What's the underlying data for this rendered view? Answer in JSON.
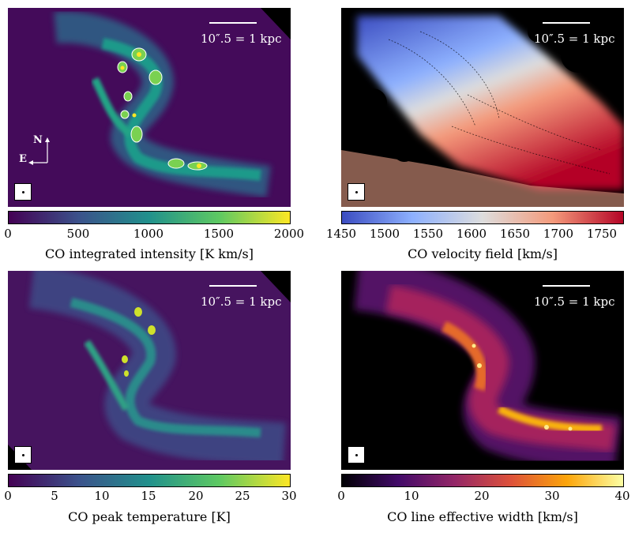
{
  "panels": [
    {
      "id": "intensity",
      "scale_label": "10″.5 = 1 kpc",
      "colorbar": {
        "label": "CO integrated intensity [K km/s]",
        "ticks": [
          "0",
          "500",
          "1000",
          "1500",
          "2000"
        ],
        "min": 0,
        "max": 2000,
        "colormap": "viridis"
      }
    },
    {
      "id": "velocity",
      "scale_label": "10″.5 = 1 kpc",
      "colorbar": {
        "label": "CO velocity field [km/s]",
        "ticks": [
          "1450",
          "1500",
          "1550",
          "1600",
          "1650",
          "1700",
          "1750"
        ],
        "min": 1450,
        "max": 1775,
        "colormap": "coolwarm"
      }
    },
    {
      "id": "peak",
      "scale_label": "10″.5 = 1 kpc",
      "colorbar": {
        "label": "CO peak temperature [K]",
        "ticks": [
          "0",
          "5",
          "10",
          "15",
          "20",
          "25",
          "30"
        ],
        "min": 0,
        "max": 30,
        "colormap": "viridis"
      }
    },
    {
      "id": "width",
      "scale_label": "10″.5 = 1 kpc",
      "colorbar": {
        "label": "CO line effective width [km/s]",
        "ticks": [
          "0",
          "10",
          "20",
          "30",
          "40"
        ],
        "min": 0,
        "max": 40,
        "colormap": "inferno"
      }
    }
  ],
  "compass": {
    "north": "N",
    "east": "E"
  },
  "colors": {
    "viridis": [
      "#440154",
      "#3b528b",
      "#21918c",
      "#5ec962",
      "#fde725"
    ],
    "coolwarm": [
      "#3b4cc0",
      "#8db0fe",
      "#dddddd",
      "#f49a7b",
      "#b40426"
    ],
    "inferno": [
      "#000004",
      "#420a68",
      "#932667",
      "#dd513a",
      "#fca50a",
      "#fcffa4"
    ]
  }
}
